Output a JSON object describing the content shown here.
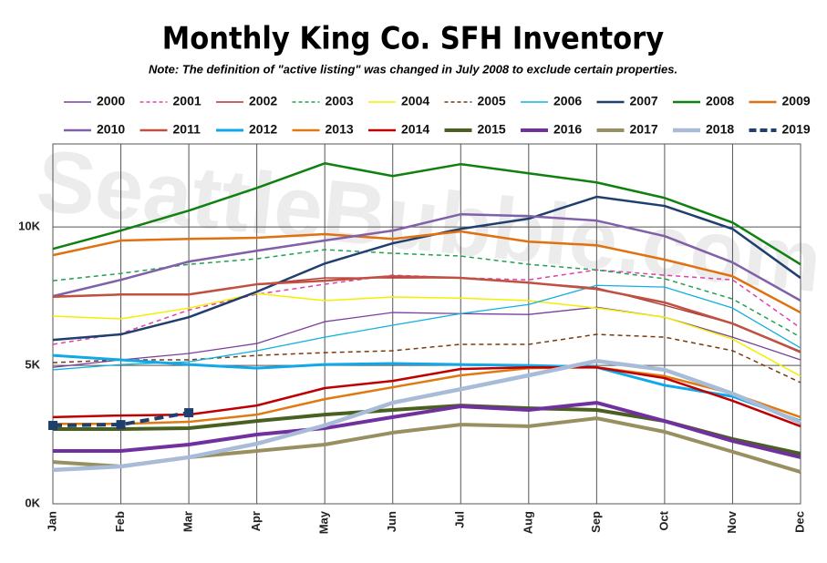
{
  "chart_data": {
    "type": "line",
    "title": "Monthly King Co. SFH Inventory",
    "subtitle": "Note: The definition of \"active listing\" was changed in July 2008 to exclude certain properties.",
    "watermark": "SeattleBubble.com",
    "categories": [
      "Jan",
      "Feb",
      "Mar",
      "Apr",
      "May",
      "Jun",
      "Jul",
      "Aug",
      "Sep",
      "Oct",
      "Nov",
      "Dec"
    ],
    "ylim": [
      0,
      13000
    ],
    "yticks": [
      {
        "value": 0,
        "label": "0K"
      },
      {
        "value": 5000,
        "label": "5K"
      },
      {
        "value": 10000,
        "label": "10K"
      }
    ],
    "grid": true,
    "series": [
      {
        "name": "2000",
        "color": "#7b3f9e",
        "width": 1.3,
        "dashed": false,
        "values": [
          4930,
          5200,
          5430,
          5790,
          6580,
          6910,
          6870,
          6840,
          7100,
          6740,
          6020,
          5200
        ]
      },
      {
        "name": "2001",
        "color": "#e040a8",
        "width": 1.5,
        "dashed": true,
        "values": [
          5760,
          6150,
          7000,
          7570,
          7930,
          8260,
          8160,
          8090,
          8450,
          8260,
          8090,
          6350
        ]
      },
      {
        "name": "2002",
        "color": "#b03030",
        "width": 1.3,
        "dashed": false,
        "values": [
          7500,
          7570,
          7570,
          7930,
          8160,
          8160,
          8160,
          7990,
          7800,
          7170,
          6510,
          5460
        ]
      },
      {
        "name": "2003",
        "color": "#20a050",
        "width": 1.5,
        "dashed": true,
        "values": [
          8060,
          8320,
          8650,
          8850,
          9180,
          9050,
          8950,
          8650,
          8450,
          8130,
          7400,
          6020
        ]
      },
      {
        "name": "2004",
        "color": "#f2f000",
        "width": 1.5,
        "dashed": false,
        "values": [
          6780,
          6680,
          7070,
          7600,
          7340,
          7470,
          7430,
          7340,
          7070,
          6740,
          5950,
          4610
        ]
      },
      {
        "name": "2005",
        "color": "#7a3a10",
        "width": 1.5,
        "dashed": true,
        "values": [
          5100,
          5200,
          5200,
          5360,
          5460,
          5530,
          5760,
          5760,
          6120,
          6020,
          5530,
          4380
        ]
      },
      {
        "name": "2006",
        "color": "#10b0e0",
        "width": 1.3,
        "dashed": false,
        "values": [
          4840,
          5030,
          5130,
          5530,
          6020,
          6450,
          6870,
          7200,
          7890,
          7830,
          7070,
          5630
        ]
      },
      {
        "name": "2007",
        "color": "#1f3f6f",
        "width": 2.5,
        "dashed": false,
        "values": [
          5920,
          6120,
          6740,
          7660,
          8680,
          9410,
          9930,
          10300,
          11090,
          10760,
          9930,
          8160
        ]
      },
      {
        "name": "2008",
        "color": "#108010",
        "width": 2.5,
        "dashed": false,
        "values": [
          9210,
          9870,
          10590,
          11410,
          12300,
          11840,
          12270,
          11940,
          11610,
          11050,
          10160,
          8650
        ]
      },
      {
        "name": "2009",
        "color": "#e07010",
        "width": 2.5,
        "dashed": false,
        "values": [
          8980,
          9510,
          9570,
          9610,
          9740,
          9570,
          9840,
          9470,
          9340,
          8820,
          8220,
          6910
        ]
      },
      {
        "name": "2010",
        "color": "#8060a8",
        "width": 2.5,
        "dashed": false,
        "values": [
          7500,
          8090,
          8750,
          9140,
          9510,
          9870,
          10460,
          10390,
          10230,
          9670,
          8720,
          7340
        ]
      },
      {
        "name": "2011",
        "color": "#c05040",
        "width": 2.5,
        "dashed": false,
        "values": [
          7480,
          7560,
          7560,
          7930,
          8060,
          8220,
          8160,
          7990,
          7760,
          7270,
          6510,
          5490
        ]
      },
      {
        "name": "2012",
        "color": "#10a8e8",
        "width": 3,
        "dashed": false,
        "values": [
          5360,
          5200,
          5030,
          4900,
          5030,
          5070,
          5030,
          5000,
          4930,
          4280,
          3880,
          2990
        ]
      },
      {
        "name": "2013",
        "color": "#e07a10",
        "width": 2.5,
        "dashed": false,
        "values": [
          2890,
          2890,
          2960,
          3220,
          3780,
          4210,
          4640,
          4900,
          4930,
          4610,
          3980,
          3130
        ]
      },
      {
        "name": "2014",
        "color": "#c00000",
        "width": 2.5,
        "dashed": false,
        "values": [
          3130,
          3190,
          3220,
          3550,
          4180,
          4440,
          4870,
          4930,
          4930,
          4540,
          3720,
          2800
        ]
      },
      {
        "name": "2015",
        "color": "#4a6020",
        "width": 4,
        "dashed": false,
        "values": [
          2700,
          2700,
          2730,
          2990,
          3220,
          3390,
          3550,
          3450,
          3390,
          2990,
          2340,
          1810
        ]
      },
      {
        "name": "2016",
        "color": "#7030a0",
        "width": 4,
        "dashed": false,
        "values": [
          1910,
          1910,
          2140,
          2500,
          2730,
          3130,
          3520,
          3390,
          3650,
          2990,
          2270,
          1680
        ]
      },
      {
        "name": "2017",
        "color": "#989060",
        "width": 4,
        "dashed": false,
        "values": [
          1510,
          1350,
          1680,
          1910,
          2140,
          2570,
          2860,
          2800,
          3090,
          2600,
          1880,
          1150
        ]
      },
      {
        "name": "2018",
        "color": "#a8bcd8",
        "width": 4.5,
        "dashed": false,
        "values": [
          1220,
          1350,
          1680,
          2170,
          2830,
          3650,
          4140,
          4640,
          5160,
          4840,
          3980,
          2930
        ]
      },
      {
        "name": "2019",
        "color": "#1f3f6f",
        "width": 4,
        "dashed": true,
        "markers": true,
        "values": [
          2830,
          2860,
          3290,
          null,
          null,
          null,
          null,
          null,
          null,
          null,
          null,
          null
        ]
      }
    ]
  }
}
